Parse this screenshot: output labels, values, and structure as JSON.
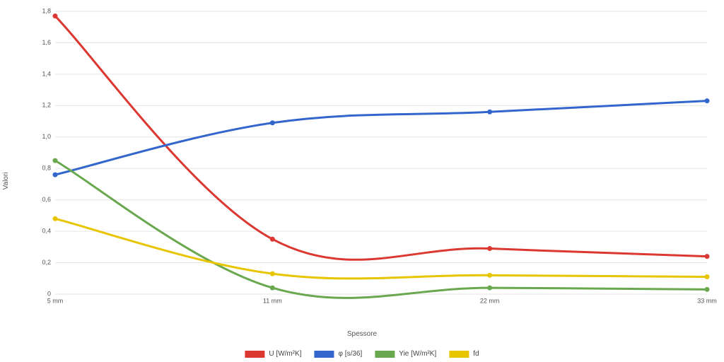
{
  "chart": {
    "type": "line",
    "background_color": "#ffffff",
    "grid_color": "#e6e6e6",
    "axis_text_color": "#555555",
    "line_width": 3,
    "marker_radius": 3.5,
    "font_family": "Arial",
    "y_title": "Valori",
    "x_title": "Spessore",
    "x_categories": [
      "5 mm",
      "11 mm",
      "22 mm",
      "33 mm"
    ],
    "ylim": [
      0,
      1.8
    ],
    "y_ticks": [
      0,
      0.2,
      0.4,
      0.6,
      0.8,
      1.0,
      1.2,
      1.4,
      1.6,
      1.8
    ],
    "y_tick_labels": [
      "0",
      "0,2",
      "0,4",
      "0,6",
      "0,8",
      "1,0",
      "1,2",
      "1,4",
      "1,6",
      "1,8"
    ],
    "series": [
      {
        "name": "U [W/m²K]",
        "color": "#db3832",
        "values": [
          1.77,
          0.35,
          0.29,
          0.24
        ]
      },
      {
        "name": "φ [s/36]",
        "color": "#3366cc",
        "values": [
          0.76,
          1.09,
          1.16,
          1.23
        ]
      },
      {
        "name": "Yie [W/m²K]",
        "color": "#6aa84f",
        "values": [
          0.85,
          0.04,
          0.04,
          0.03
        ]
      },
      {
        "name": "fd",
        "color": "#e7c500",
        "values": [
          0.48,
          0.13,
          0.12,
          0.11
        ]
      }
    ]
  }
}
